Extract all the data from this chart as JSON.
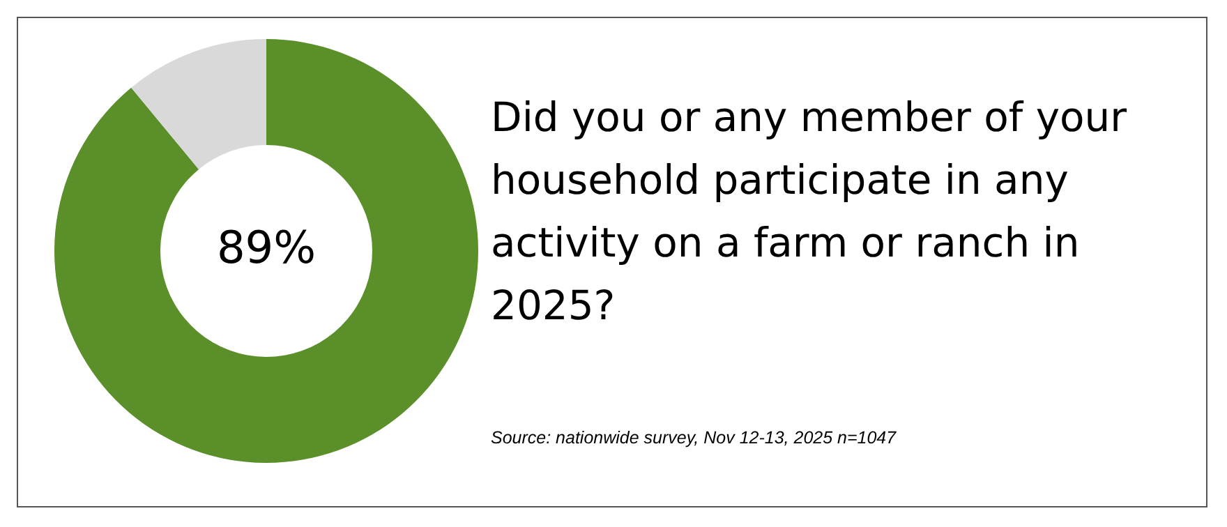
{
  "chart_data": {
    "type": "donut",
    "title": "Did you or any member of your household participate in any activity on a farm or ranch in 2025?",
    "categories": [
      null,
      null
    ],
    "values": [
      89,
      11
    ],
    "colors": [
      "#5b8f29",
      "#d9d9d9"
    ],
    "value_labels": [
      "89%",
      null
    ],
    "legend": false,
    "annotations": [
      "Source: nationwide survey, Nov 12-13, 2025 n=1047"
    ]
  }
}
